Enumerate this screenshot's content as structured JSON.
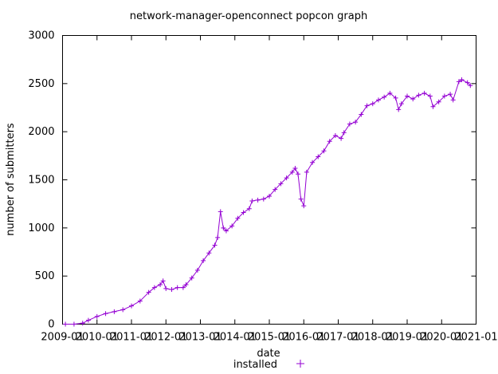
{
  "chart_data": {
    "type": "line",
    "title": "network-manager-openconnect popcon graph",
    "xlabel": "date",
    "ylabel": "number of submitters",
    "x_ticks": [
      "2009-01",
      "2010-01",
      "2011-01",
      "2012-01",
      "2013-01",
      "2014-01",
      "2015-01",
      "2016-01",
      "2017-01",
      "2018-01",
      "2019-01",
      "2020-01",
      "2021-01"
    ],
    "y_ticks": [
      0,
      500,
      1000,
      1500,
      2000,
      2500,
      3000
    ],
    "xlim": [
      "2009-01",
      "2021-01"
    ],
    "ylim": [
      0,
      3000
    ],
    "grid": false,
    "legend_position": "bottom-center",
    "series": [
      {
        "name": "installed",
        "color": "#9400d3",
        "marker": "plus",
        "points": [
          [
            "2009-02",
            0
          ],
          [
            "2009-05",
            0
          ],
          [
            "2009-08",
            10
          ],
          [
            "2009-10",
            40
          ],
          [
            "2010-01",
            80
          ],
          [
            "2010-04",
            110
          ],
          [
            "2010-07",
            130
          ],
          [
            "2010-10",
            150
          ],
          [
            "2011-01",
            190
          ],
          [
            "2011-04",
            240
          ],
          [
            "2011-07",
            330
          ],
          [
            "2011-09",
            380
          ],
          [
            "2011-11",
            410
          ],
          [
            "2011-12",
            450
          ],
          [
            "2012-01",
            370
          ],
          [
            "2012-03",
            360
          ],
          [
            "2012-05",
            380
          ],
          [
            "2012-07",
            380
          ],
          [
            "2012-08",
            410
          ],
          [
            "2012-10",
            480
          ],
          [
            "2012-12",
            560
          ],
          [
            "2013-02",
            660
          ],
          [
            "2013-04",
            740
          ],
          [
            "2013-06",
            820
          ],
          [
            "2013-07",
            900
          ],
          [
            "2013-08",
            1170
          ],
          [
            "2013-09",
            1000
          ],
          [
            "2013-10",
            970
          ],
          [
            "2013-12",
            1020
          ],
          [
            "2014-02",
            1100
          ],
          [
            "2014-04",
            1160
          ],
          [
            "2014-06",
            1200
          ],
          [
            "2014-07",
            1280
          ],
          [
            "2014-09",
            1290
          ],
          [
            "2014-11",
            1300
          ],
          [
            "2015-01",
            1330
          ],
          [
            "2015-03",
            1400
          ],
          [
            "2015-05",
            1460
          ],
          [
            "2015-07",
            1520
          ],
          [
            "2015-09",
            1580
          ],
          [
            "2015-10",
            1620
          ],
          [
            "2015-11",
            1560
          ],
          [
            "2015-12",
            1300
          ],
          [
            "2016-01",
            1230
          ],
          [
            "2016-02",
            1580
          ],
          [
            "2016-04",
            1680
          ],
          [
            "2016-06",
            1740
          ],
          [
            "2016-08",
            1800
          ],
          [
            "2016-10",
            1900
          ],
          [
            "2016-12",
            1960
          ],
          [
            "2017-02",
            1930
          ],
          [
            "2017-03",
            1990
          ],
          [
            "2017-05",
            2080
          ],
          [
            "2017-07",
            2100
          ],
          [
            "2017-09",
            2180
          ],
          [
            "2017-11",
            2270
          ],
          [
            "2018-01",
            2290
          ],
          [
            "2018-03",
            2330
          ],
          [
            "2018-05",
            2360
          ],
          [
            "2018-07",
            2400
          ],
          [
            "2018-09",
            2350
          ],
          [
            "2018-10",
            2230
          ],
          [
            "2018-11",
            2290
          ],
          [
            "2019-01",
            2370
          ],
          [
            "2019-03",
            2340
          ],
          [
            "2019-05",
            2380
          ],
          [
            "2019-07",
            2400
          ],
          [
            "2019-09",
            2370
          ],
          [
            "2019-10",
            2260
          ],
          [
            "2019-12",
            2310
          ],
          [
            "2020-02",
            2370
          ],
          [
            "2020-04",
            2390
          ],
          [
            "2020-05",
            2330
          ],
          [
            "2020-07",
            2520
          ],
          [
            "2020-08",
            2540
          ],
          [
            "2020-10",
            2510
          ],
          [
            "2020-11",
            2480
          ]
        ]
      }
    ]
  }
}
